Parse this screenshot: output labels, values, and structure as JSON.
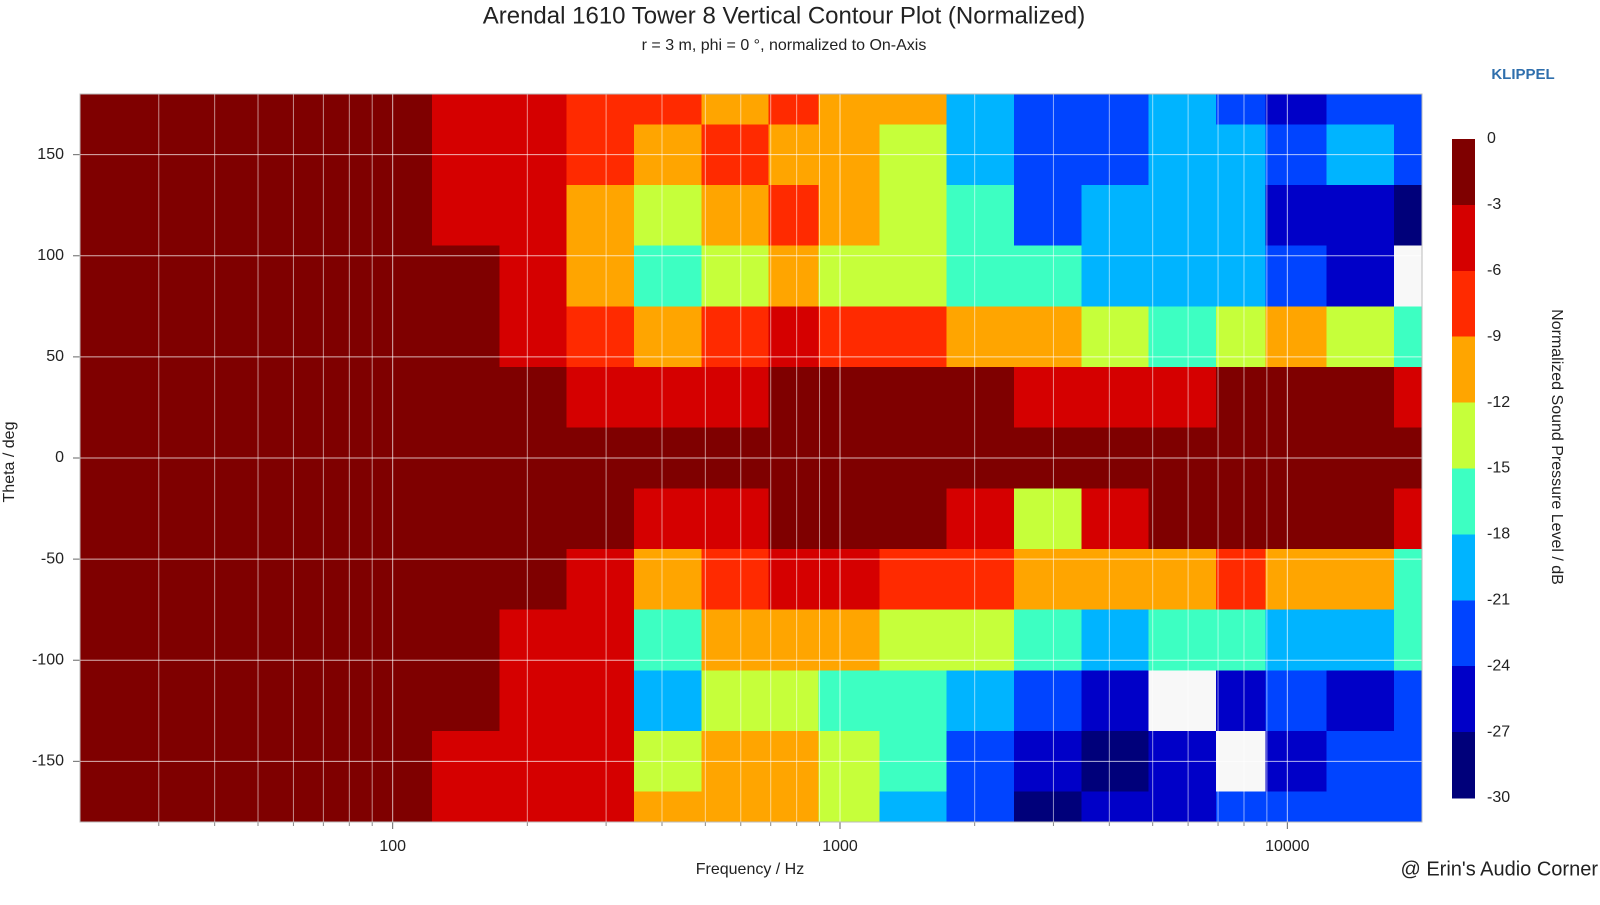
{
  "chart_data": {
    "type": "contour",
    "title": "Arendal 1610 Tower 8 Vertical Contour Plot (Normalized)",
    "subtitle": "r = 3 m, phi = 0 °, normalized to On-Axis",
    "x_label": "Frequency / Hz",
    "y_label": "Theta / deg",
    "colorbar_label": "Normalized Sound Pressure Level / dB",
    "brand": "KLIPPEL",
    "credit": "@ Erin's Audio Corner",
    "x_scale": "log",
    "xlim": [
      20,
      20000
    ],
    "xticks": [
      100,
      1000,
      10000
    ],
    "xminor": [
      30,
      40,
      50,
      60,
      70,
      80,
      90,
      200,
      300,
      400,
      500,
      600,
      700,
      800,
      900,
      2000,
      3000,
      4000,
      5000,
      6000,
      7000,
      8000,
      9000
    ],
    "ylim": [
      -180,
      180
    ],
    "yticks": [
      -150,
      -100,
      -50,
      0,
      50,
      100,
      150
    ],
    "grid": true,
    "x": [
      20,
      50,
      100,
      150,
      200,
      300,
      400,
      600,
      800,
      1000,
      1500,
      2000,
      3000,
      4000,
      6000,
      8000,
      10000,
      15000,
      20000
    ],
    "y": [
      180,
      150,
      120,
      90,
      60,
      30,
      0,
      -30,
      -60,
      -90,
      -120,
      -150,
      -180
    ],
    "z": [
      [
        -1,
        -1,
        -2,
        -4,
        -5,
        -7,
        -8,
        -10,
        -9,
        -10,
        -12,
        -20,
        -22,
        -24,
        -20,
        -22,
        -26,
        -24,
        -22
      ],
      [
        -1,
        -1,
        -2,
        -4,
        -5,
        -8,
        -12,
        -9,
        -10,
        -12,
        -14,
        -19,
        -24,
        -22,
        -20,
        -21,
        -22,
        -20,
        -24
      ],
      [
        -1,
        -1,
        -1,
        -4,
        -5,
        -10,
        -14,
        -10,
        -8,
        -12,
        -15,
        -18,
        -22,
        -20,
        -19,
        -21,
        -25,
        -27,
        -28
      ],
      [
        -1,
        -1,
        -1,
        -3,
        -5,
        -12,
        -16,
        -13,
        -10,
        -13,
        -14,
        -16,
        -18,
        -21,
        -20,
        -20,
        -24,
        -26,
        -31
      ],
      [
        -1,
        -1,
        -1,
        -2,
        -4,
        -8,
        -10,
        -8,
        -6,
        -7,
        -8,
        -10,
        -12,
        -15,
        -16,
        -14,
        -12,
        -14,
        -18
      ],
      [
        -1,
        -1,
        -1,
        -1,
        -2,
        -4,
        -6,
        -4,
        -3,
        -2,
        -2,
        -3,
        -4,
        -5,
        -4,
        -3,
        -2,
        -3,
        -5
      ],
      [
        -1,
        -1,
        -1,
        -1,
        -1,
        -1,
        -1,
        -1,
        -1,
        -1,
        -1,
        -1,
        -1,
        -1,
        -1,
        -1,
        -1,
        -1,
        -1
      ],
      [
        -1,
        -1,
        -1,
        -1,
        -1,
        -2,
        -5,
        -4,
        -3,
        -2,
        -3,
        -4,
        -15,
        -4,
        -3,
        -2,
        -2,
        -3,
        -6
      ],
      [
        -1,
        -1,
        -1,
        -1,
        -2,
        -5,
        -12,
        -8,
        -6,
        -5,
        -7,
        -8,
        -10,
        -12,
        -10,
        -8,
        -10,
        -12,
        -18
      ],
      [
        -1,
        -1,
        -1,
        -2,
        -4,
        -6,
        -18,
        -12,
        -10,
        -12,
        -14,
        -15,
        -18,
        -20,
        -16,
        -18,
        -20,
        -19,
        -18
      ],
      [
        -1,
        -1,
        -1,
        -3,
        -4,
        -6,
        -20,
        -15,
        -14,
        -16,
        -18,
        -21,
        -24,
        -27,
        -31,
        -26,
        -24,
        -25,
        -24
      ],
      [
        -1,
        -1,
        -1,
        -4,
        -5,
        -6,
        -14,
        -12,
        -12,
        -15,
        -18,
        -22,
        -26,
        -28,
        -27,
        -31,
        -25,
        -24,
        -22
      ],
      [
        -1,
        -1,
        -1,
        -4,
        -5,
        -6,
        -12,
        -10,
        -11,
        -14,
        -20,
        -24,
        -28,
        -26,
        -25,
        -23,
        -22,
        -24,
        -22
      ]
    ],
    "levels": [
      0,
      -3,
      -6,
      -9,
      -12,
      -15,
      -18,
      -21,
      -24,
      -27,
      -30
    ],
    "colors": [
      "#7f0000",
      "#d50000",
      "#ff2a00",
      "#ffa500",
      "#c6ff3a",
      "#3dffc2",
      "#00b4ff",
      "#0044ff",
      "#0000c8",
      "#00007a"
    ],
    "below_color": "#f8f8f8"
  }
}
